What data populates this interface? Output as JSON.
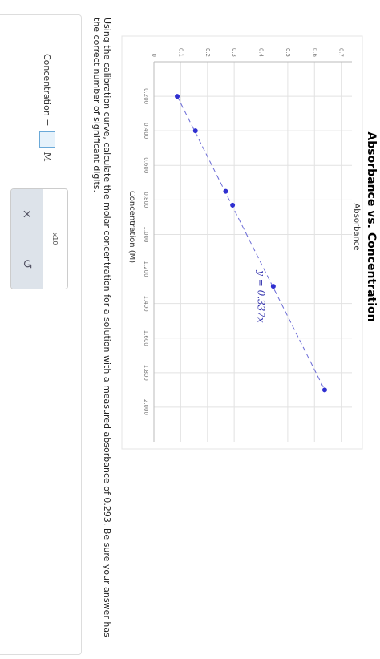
{
  "chart_data": {
    "type": "scatter",
    "title": "Absorbance vs. Concentration",
    "x_label": "Concentration (M)",
    "y_label": "Absorbance",
    "annotation": "y = 0.337x",
    "x": [
      0.2,
      0.4,
      0.75,
      0.83,
      1.3,
      1.9
    ],
    "series": [
      {
        "name": "Absorbance",
        "color": "#2f2fd0",
        "values": [
          0.087,
          0.155,
          0.268,
          0.294,
          0.446,
          0.638
        ]
      }
    ],
    "xlim": [
      0,
      2.2
    ],
    "ylim": [
      0,
      0.74
    ],
    "xticks": [
      {
        "value": 0.2,
        "label": "0.200"
      },
      {
        "value": 0.4,
        "label": "0.400"
      },
      {
        "value": 0.6,
        "label": "0.600"
      },
      {
        "value": 0.8,
        "label": "0.800"
      },
      {
        "value": 1.0,
        "label": "1.000"
      },
      {
        "value": 1.2,
        "label": "1.200"
      },
      {
        "value": 1.4,
        "label": "1.400"
      },
      {
        "value": 1.6,
        "label": "1.600"
      },
      {
        "value": 1.8,
        "label": "1.800"
      },
      {
        "value": 2.0,
        "label": "2.000"
      }
    ],
    "yticks": [
      0,
      0.1,
      0.2,
      0.3,
      0.4,
      0.5,
      0.6,
      0.7
    ],
    "grid": true
  },
  "question": "Using the calibration curve, calculate the molar concentration for a solution with a measured absorbance of 0.293. Be sure your answer has the correct number of significant digits.",
  "answer": {
    "label": "Concentration =",
    "unit": "M"
  },
  "tools": {
    "exponent": "x10",
    "clear": "×",
    "undo": "↺"
  }
}
